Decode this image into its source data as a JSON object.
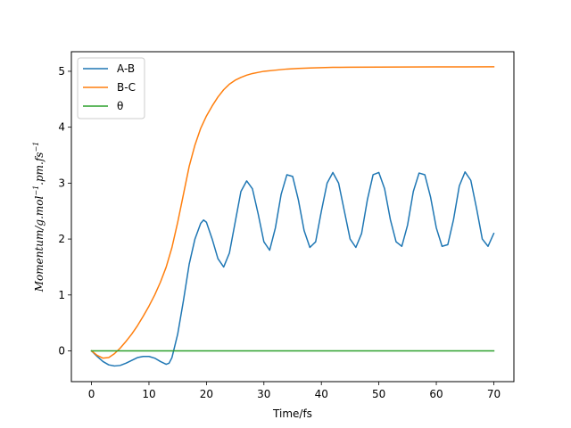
{
  "chart_data": {
    "type": "line",
    "title": "",
    "xlabel": "Time/fs",
    "ylabel": {
      "base": "Momentum/g.mol",
      "sup1": "−1",
      "mid": ".pm.fs",
      "sup2": "−1"
    },
    "xlim": [
      -3.5,
      73.5
    ],
    "ylim": [
      -0.55,
      5.35
    ],
    "xticks": [
      0,
      10,
      20,
      30,
      40,
      50,
      60,
      70
    ],
    "yticks": [
      0,
      1,
      2,
      3,
      4,
      5
    ],
    "grid": false,
    "legend": "top-left",
    "series": [
      {
        "name": "A-B",
        "color": "#1f77b4",
        "x": [
          0,
          1,
          2,
          3,
          4,
          5,
          6,
          7,
          8,
          9,
          10,
          11,
          12,
          13,
          13.5,
          14,
          15,
          16,
          17,
          18,
          19,
          19.5,
          20,
          21,
          22,
          23,
          24,
          25,
          26,
          27,
          28,
          29,
          30,
          31,
          32,
          33,
          34,
          35,
          36,
          37,
          38,
          39,
          40,
          41,
          42,
          43,
          44,
          45,
          46,
          47,
          48,
          49,
          50,
          51,
          52,
          53,
          54,
          55,
          56,
          57,
          58,
          59,
          60,
          61,
          62,
          63,
          64,
          65,
          66,
          67,
          68,
          69,
          70
        ],
        "y": [
          0.0,
          -0.1,
          -0.19,
          -0.25,
          -0.27,
          -0.26,
          -0.22,
          -0.17,
          -0.12,
          -0.1,
          -0.1,
          -0.13,
          -0.19,
          -0.24,
          -0.22,
          -0.12,
          0.3,
          0.9,
          1.55,
          2.0,
          2.28,
          2.34,
          2.3,
          2.0,
          1.65,
          1.5,
          1.75,
          2.3,
          2.85,
          3.04,
          2.9,
          2.45,
          1.95,
          1.8,
          2.2,
          2.8,
          3.15,
          3.12,
          2.7,
          2.15,
          1.85,
          1.95,
          2.5,
          3.0,
          3.19,
          3.0,
          2.5,
          2.0,
          1.85,
          2.1,
          2.7,
          3.15,
          3.19,
          2.9,
          2.35,
          1.95,
          1.87,
          2.25,
          2.85,
          3.18,
          3.15,
          2.75,
          2.2,
          1.87,
          1.9,
          2.35,
          2.95,
          3.2,
          3.05,
          2.55,
          2.0,
          1.87,
          2.1
        ]
      },
      {
        "name": "B-C",
        "color": "#ff7f0e",
        "x": [
          0,
          1,
          2,
          3,
          4,
          5,
          6,
          7,
          8,
          9,
          10,
          11,
          12,
          13,
          14,
          15,
          16,
          17,
          18,
          19,
          20,
          21,
          22,
          23,
          24,
          25,
          26,
          27,
          28,
          29,
          30,
          32,
          34,
          36,
          38,
          40,
          42,
          45,
          50,
          55,
          60,
          65,
          70
        ],
        "y": [
          0.0,
          -0.08,
          -0.13,
          -0.12,
          -0.05,
          0.05,
          0.17,
          0.3,
          0.45,
          0.62,
          0.8,
          1.0,
          1.23,
          1.5,
          1.85,
          2.3,
          2.8,
          3.3,
          3.68,
          3.98,
          4.2,
          4.38,
          4.54,
          4.67,
          4.77,
          4.84,
          4.89,
          4.93,
          4.96,
          4.98,
          5.0,
          5.02,
          5.04,
          5.05,
          5.06,
          5.065,
          5.07,
          5.072,
          5.075,
          5.077,
          5.078,
          5.079,
          5.08
        ]
      },
      {
        "name": "θ",
        "color": "#2ca02c",
        "x": [
          0,
          70
        ],
        "y": [
          0,
          0
        ]
      }
    ]
  }
}
